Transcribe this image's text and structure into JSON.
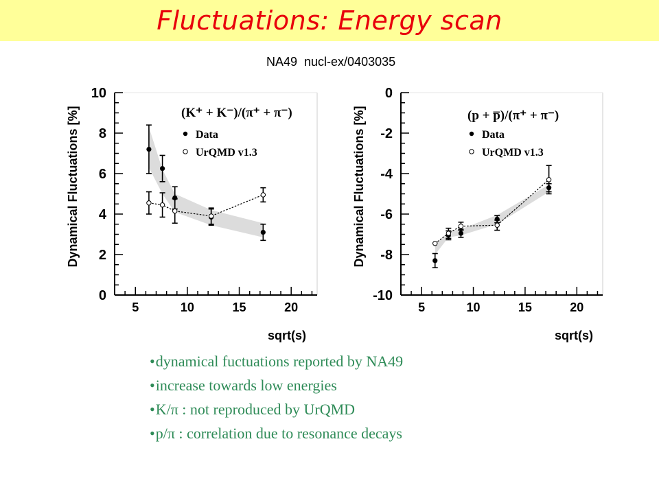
{
  "slide": {
    "title": "Fluctuations: Energy scan",
    "reference": "NA49  nucl-ex/0403035",
    "bullets": [
      "dynamical fuctuations reported by NA49",
      "increase towards low energies",
      "K/π : not reproduced by UrQMD",
      "p/π : correlation due to resonance decays"
    ]
  },
  "colors": {
    "title": "#e8000b",
    "title_background": "#ffff99",
    "bullets": "#2e8b57",
    "band": "#dcdcdc"
  },
  "chart_data": [
    {
      "type": "scatter",
      "title": "",
      "legend_title": "(K⁺ + K⁻)/(π⁺ + π⁻)",
      "legend_placement": "top-right",
      "xlabel": "sqrt(s)",
      "ylabel": "Dynamical Fluctuations [%]",
      "xlim": [
        3,
        22.5
      ],
      "ylim": [
        0,
        10
      ],
      "xticks": [
        5,
        10,
        15,
        20
      ],
      "yticks": [
        0,
        2,
        4,
        6,
        8,
        10
      ],
      "series": [
        {
          "name": "Data",
          "x": [
            6.3,
            7.6,
            8.8,
            12.3,
            17.3
          ],
          "y": [
            7.2,
            6.25,
            4.8,
            3.85,
            3.1
          ],
          "err": [
            1.2,
            0.65,
            0.55,
            0.4,
            0.4
          ]
        },
        {
          "name": "UrQMD v1.3",
          "x": [
            6.3,
            7.6,
            8.8,
            12.3,
            17.3
          ],
          "y": [
            4.55,
            4.45,
            4.15,
            3.9,
            4.95
          ],
          "err": [
            0.55,
            0.6,
            0.6,
            0.4,
            0.35
          ]
        }
      ],
      "band": {
        "x": [
          6.3,
          7.6,
          8.8,
          12.3,
          17.3
        ],
        "low": [
          6.3,
          5.0,
          4.1,
          3.45,
          2.85
        ],
        "high": [
          8.3,
          6.2,
          5.0,
          4.2,
          3.55
        ]
      }
    },
    {
      "type": "scatter",
      "title": "",
      "legend_title": "(p + p̅)/(π⁺ + π⁻)",
      "legend_placement": "top-right",
      "xlabel": "sqrt(s)",
      "ylabel": "Dynamical Fluctuations [%]",
      "xlim": [
        3,
        22.5
      ],
      "ylim": [
        -10,
        0
      ],
      "xticks": [
        5,
        10,
        15,
        20
      ],
      "yticks": [
        -10,
        -8,
        -6,
        -4,
        -2,
        0
      ],
      "series": [
        {
          "name": "Data",
          "x": [
            6.3,
            7.6,
            8.8,
            12.3,
            17.3
          ],
          "y": [
            -8.3,
            -7.05,
            -6.95,
            -6.25,
            -4.7
          ],
          "err": [
            0.35,
            0.22,
            0.2,
            0.18,
            0.2
          ]
        },
        {
          "name": "UrQMD v1.3",
          "x": [
            6.3,
            7.6,
            8.8,
            12.3,
            17.3
          ],
          "y": [
            -7.45,
            -6.95,
            -6.6,
            -6.55,
            -4.3
          ],
          "err": [
            0.0,
            0.25,
            0.2,
            0.25,
            0.7
          ]
        }
      ],
      "band": {
        "x": [
          6.3,
          7.6,
          8.8,
          12.3,
          17.3
        ],
        "low": [
          -8.0,
          -7.15,
          -7.05,
          -6.5,
          -4.9
        ],
        "high": [
          -7.5,
          -6.85,
          -6.75,
          -6.05,
          -4.55
        ]
      }
    }
  ]
}
